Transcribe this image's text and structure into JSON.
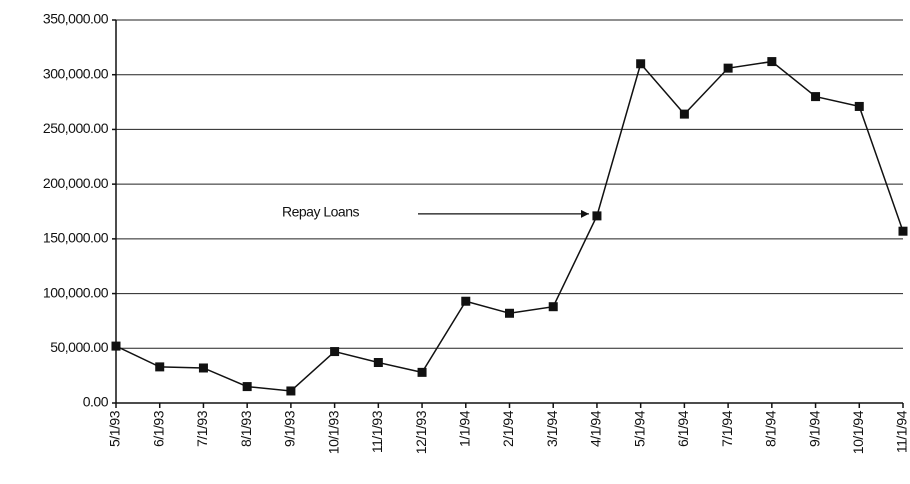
{
  "chart_data": {
    "type": "line",
    "annotation": "Repay Loans",
    "categories": [
      "5/1/93",
      "6/1/93",
      "7/1/93",
      "8/1/93",
      "9/1/93",
      "10/1/93",
      "11/1/93",
      "12/1/93",
      "1/1/94",
      "2/1/94",
      "3/1/94",
      "4/1/94",
      "5/1/94",
      "6/1/94",
      "7/1/94",
      "8/1/94",
      "9/1/94",
      "10/1/94",
      "11/1/94"
    ],
    "values": [
      52000,
      33000,
      32000,
      15000,
      11000,
      47000,
      37000,
      28000,
      93000,
      82000,
      88000,
      171000,
      310000,
      264000,
      306000,
      312000,
      280000,
      271000,
      157000
    ],
    "color": "#111111",
    "ylim": [
      0,
      350000
    ],
    "yticks": [
      {
        "value": 0,
        "label": "0.00"
      },
      {
        "value": 50000,
        "label": "50,000.00"
      },
      {
        "value": 100000,
        "label": "100,000.00"
      },
      {
        "value": 150000,
        "label": "150,000.00"
      },
      {
        "value": 200000,
        "label": "200,000.00"
      },
      {
        "value": 250000,
        "label": "250,000.00"
      },
      {
        "value": 300000,
        "label": "300,000.00"
      },
      {
        "value": 350000,
        "label": "350,000.00"
      }
    ],
    "grid": true
  }
}
